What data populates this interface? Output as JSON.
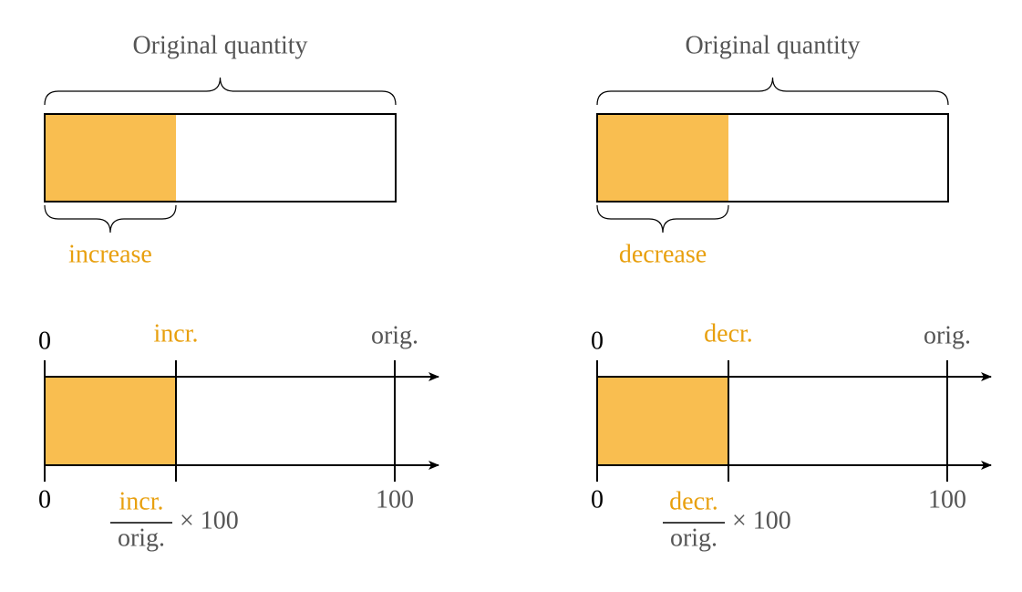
{
  "panels": [
    {
      "title": "Original quantity",
      "brace_label": "increase",
      "top_labels": [
        "0",
        "incr.",
        "orig."
      ],
      "bottom_labels": [
        "0",
        "100"
      ],
      "fraction": {
        "numerator": "incr.",
        "denominator": "orig.",
        "multiplier": "× 100"
      }
    },
    {
      "title": "Original quantity",
      "brace_label": "decrease",
      "top_labels": [
        "0",
        "decr.",
        "orig."
      ],
      "bottom_labels": [
        "0",
        "100"
      ],
      "fraction": {
        "numerator": "decr.",
        "denominator": "orig.",
        "multiplier": "× 100"
      }
    }
  ]
}
